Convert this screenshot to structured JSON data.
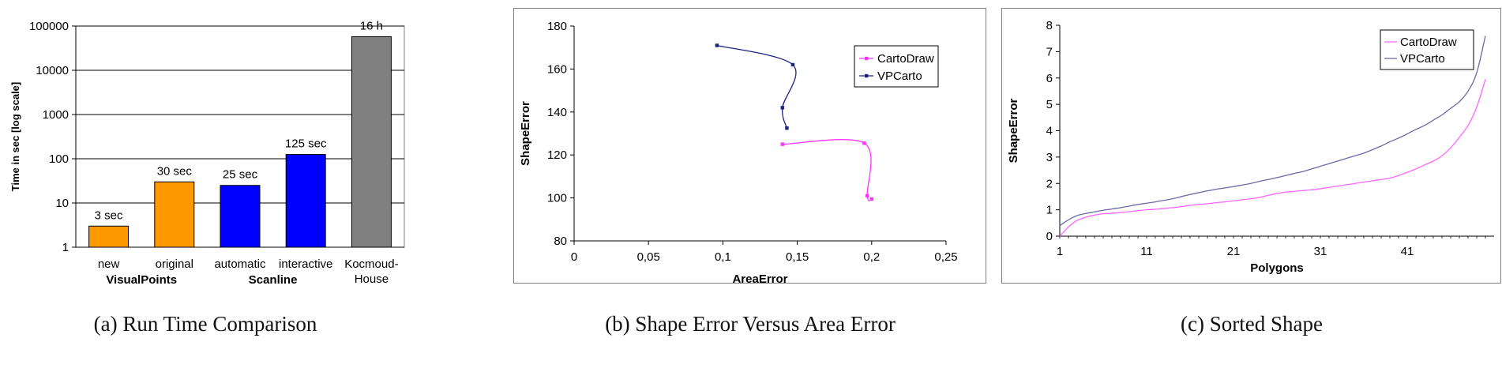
{
  "chart_data": [
    {
      "type": "bar",
      "caption": "(a) Run Time Comparison",
      "ylabel": "Time in sec [log scale]",
      "yscale": "log",
      "ylim": [
        1,
        100000
      ],
      "yticks": [
        "1",
        "10",
        "100",
        "1000",
        "10000",
        "100000"
      ],
      "categories": [
        "new",
        "original",
        "automatic",
        "interactive",
        "Kocmoud-House"
      ],
      "category_label_lines": [
        [
          "new"
        ],
        [
          "original"
        ],
        [
          "automatic"
        ],
        [
          "interactive"
        ],
        [
          "Kocmoud-",
          "House"
        ]
      ],
      "groups": [
        {
          "label": "VisualPoints",
          "categories": [
            0,
            1
          ]
        },
        {
          "label": "Scanline",
          "categories": [
            2,
            3
          ]
        }
      ],
      "values": [
        3,
        30,
        25,
        125,
        57600
      ],
      "data_labels": [
        "3 sec",
        "30 sec",
        "25 sec",
        "125 sec",
        "16 h"
      ],
      "colors": [
        "#ff9900",
        "#ff9900",
        "#0000ff",
        "#0000ff",
        "#808080"
      ],
      "grid": true
    },
    {
      "type": "line",
      "caption": "(b) Shape Error Versus Area Error",
      "xlabel": "AreaError",
      "ylabel": "ShapeError",
      "xlim": [
        0,
        0.25
      ],
      "ylim": [
        80,
        180
      ],
      "xticks": [
        "0",
        "0,05",
        "0,1",
        "0,15",
        "0,2",
        "0,25"
      ],
      "yticks": [
        "80",
        "100",
        "120",
        "140",
        "160",
        "180"
      ],
      "legend_position": "top-right",
      "series": [
        {
          "name": "CartoDraw",
          "color": "#ff33ff",
          "points": [
            [
              0.14,
              125
            ],
            [
              0.195,
              125.5
            ],
            [
              0.197,
              101
            ],
            [
              0.2,
              99.5
            ]
          ]
        },
        {
          "name": "VPCarto",
          "color": "#1a237e",
          "points": [
            [
              0.096,
              171
            ],
            [
              0.147,
              162
            ],
            [
              0.14,
              142
            ],
            [
              0.143,
              132.5
            ]
          ]
        }
      ],
      "grid": false
    },
    {
      "type": "line",
      "caption": "(c) Sorted Shape",
      "xlabel": "Polygons",
      "ylabel": "ShapeError",
      "xlim": [
        1,
        51
      ],
      "ylim": [
        0,
        8
      ],
      "xticks": [
        "1",
        "11",
        "21",
        "31",
        "41"
      ],
      "yticks": [
        "0",
        "1",
        "2",
        "3",
        "4",
        "5",
        "6",
        "7",
        "8"
      ],
      "legend_position": "top-right",
      "series": [
        {
          "name": "CartoDraw",
          "color": "#ff66ff",
          "x": [
            1,
            2,
            3,
            4,
            5,
            6,
            7,
            8,
            9,
            10,
            11,
            12,
            13,
            14,
            15,
            16,
            17,
            18,
            19,
            20,
            21,
            22,
            23,
            24,
            25,
            26,
            27,
            28,
            29,
            30,
            31,
            32,
            33,
            34,
            35,
            36,
            37,
            38,
            39,
            40,
            41,
            42,
            43,
            44,
            45,
            46,
            47,
            48,
            49,
            50
          ],
          "values": [
            0.0,
            0.35,
            0.6,
            0.72,
            0.8,
            0.85,
            0.87,
            0.9,
            0.93,
            0.97,
            1.0,
            1.02,
            1.05,
            1.08,
            1.12,
            1.17,
            1.2,
            1.23,
            1.27,
            1.3,
            1.34,
            1.38,
            1.42,
            1.47,
            1.55,
            1.62,
            1.67,
            1.7,
            1.73,
            1.76,
            1.8,
            1.85,
            1.9,
            1.95,
            2.0,
            2.05,
            2.1,
            2.15,
            2.2,
            2.3,
            2.42,
            2.55,
            2.7,
            2.85,
            3.05,
            3.35,
            3.75,
            4.2,
            4.9,
            5.95
          ]
        },
        {
          "name": "VPCarto",
          "color": "#6a6aa8",
          "x": [
            1,
            2,
            3,
            4,
            5,
            6,
            7,
            8,
            9,
            10,
            11,
            12,
            13,
            14,
            15,
            16,
            17,
            18,
            19,
            20,
            21,
            22,
            23,
            24,
            25,
            26,
            27,
            28,
            29,
            30,
            31,
            32,
            33,
            34,
            35,
            36,
            37,
            38,
            39,
            40,
            41,
            42,
            43,
            44,
            45,
            46,
            47,
            48,
            49,
            50
          ],
          "values": [
            0.4,
            0.62,
            0.78,
            0.86,
            0.92,
            0.98,
            1.03,
            1.08,
            1.14,
            1.2,
            1.25,
            1.3,
            1.36,
            1.42,
            1.5,
            1.58,
            1.65,
            1.72,
            1.78,
            1.83,
            1.88,
            1.94,
            2.0,
            2.08,
            2.15,
            2.22,
            2.3,
            2.38,
            2.45,
            2.55,
            2.65,
            2.75,
            2.85,
            2.95,
            3.05,
            3.15,
            3.28,
            3.42,
            3.58,
            3.72,
            3.88,
            4.05,
            4.2,
            4.4,
            4.6,
            4.85,
            5.1,
            5.5,
            6.2,
            7.6
          ]
        }
      ],
      "grid": false
    }
  ]
}
